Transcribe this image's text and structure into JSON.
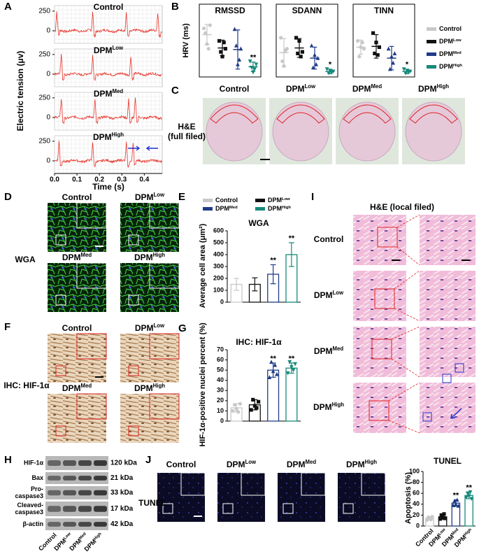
{
  "figure_letters": [
    "A",
    "B",
    "C",
    "D",
    "E",
    "F",
    "G",
    "H",
    "I",
    "J"
  ],
  "groups": [
    {
      "name": "Control"
    },
    {
      "name": "DPM",
      "sup": "Low"
    },
    {
      "name": "DPM",
      "sup": "Med"
    },
    {
      "name": "DPM",
      "sup": "High"
    }
  ],
  "group_colors": [
    "#c8c8c8",
    "#111111",
    "#1f3c88",
    "#17897a"
  ],
  "panel_A": {
    "ylabel": "Electric tension (μv)",
    "xlabel": "Time (s)",
    "ylim": [
      -160,
      320
    ],
    "yticks": [
      0,
      250
    ],
    "xlim": [
      0,
      0.48
    ],
    "xticks": [
      {
        "value": 0,
        "label": "0.0"
      },
      {
        "value": 0.1,
        "label": "0.1"
      },
      {
        "value": 0.2,
        "label": "0.2"
      },
      {
        "value": 0.3,
        "label": "0.3"
      },
      {
        "value": 0.4,
        "label": "0.4"
      }
    ]
  },
  "panel_B": {
    "ylabel": "HRV (ms)",
    "charts": [
      {
        "title": "RMSSD",
        "ylim": [
          0,
          7.5
        ],
        "means": [
          5.4,
          3.7,
          3.5,
          1.3
        ],
        "errors": [
          1.3,
          1.0,
          2.5,
          0.6
        ],
        "points": [
          [
            6.2,
            5.6,
            4.2,
            3.6,
            6.6
          ],
          [
            4.6,
            3.2,
            2.6,
            4.4,
            3.6
          ],
          [
            6.1,
            4.0,
            1.6,
            2.2,
            3.6
          ],
          [
            2.0,
            1.2,
            0.6,
            1.0,
            1.6
          ]
        ],
        "significance": [
          null,
          null,
          null,
          "**"
        ]
      },
      {
        "title": "SDANN",
        "ylim": [
          0,
          7.5
        ],
        "means": [
          3.1,
          3.7,
          2.4,
          0.7
        ],
        "errors": [
          1.8,
          1.2,
          1.4,
          0.3
        ],
        "points": [
          [
            5.0,
            2.0,
            1.4,
            3.4,
            3.6
          ],
          [
            5.0,
            3.0,
            4.6,
            2.6,
            3.2
          ],
          [
            4.0,
            1.2,
            2.8,
            1.6,
            2.4
          ],
          [
            1.0,
            0.5,
            0.8,
            0.6,
            0.7
          ]
        ],
        "significance": [
          null,
          null,
          null,
          "*"
        ]
      },
      {
        "title": "TINN",
        "ylim": [
          0,
          7.5
        ],
        "means": [
          3.8,
          3.9,
          2.4,
          0.7
        ],
        "errors": [
          0.9,
          1.5,
          1.5,
          0.3
        ],
        "points": [
          [
            4.6,
            2.6,
            3.8,
            4.4,
            3.6
          ],
          [
            5.6,
            3.0,
            4.4,
            2.8,
            3.8
          ],
          [
            3.6,
            1.0,
            2.6,
            1.8,
            3.0
          ],
          [
            1.0,
            0.5,
            0.8,
            0.6,
            0.7
          ]
        ],
        "significance": [
          null,
          null,
          null,
          "*"
        ]
      }
    ]
  },
  "panel_C": {
    "label_lines": [
      "H&E",
      "(full filed)"
    ]
  },
  "panel_D": {
    "label": "WGA"
  },
  "panel_E": {
    "title": "WGA",
    "ylabel": "Average cell area (μm²)",
    "ylim": [
      0,
      600
    ],
    "yticks": [
      0,
      100,
      200,
      300,
      400,
      500,
      600
    ],
    "means": [
      150,
      150,
      235,
      400
    ],
    "errors": [
      50,
      55,
      80,
      100
    ],
    "significance": [
      null,
      null,
      "**",
      "**"
    ]
  },
  "panel_F": {
    "label": "IHC: HIF-1α"
  },
  "panel_G": {
    "title": "IHC: HIF-1α",
    "ylabel": "HIF-1α-positive nuclei percent (%)",
    "ylim": [
      0,
      70
    ],
    "yticks": [
      0,
      10,
      20,
      30,
      40,
      50,
      60,
      70
    ],
    "means": [
      13,
      16,
      50,
      52
    ],
    "errors": [
      4,
      5,
      7,
      5
    ],
    "points": [
      [
        10,
        16,
        12,
        9,
        17
      ],
      [
        11,
        21,
        15,
        13,
        19
      ],
      [
        43,
        58,
        49,
        55,
        46
      ],
      [
        47,
        58,
        53,
        50,
        56
      ]
    ],
    "significance": [
      null,
      null,
      "**",
      "**"
    ]
  },
  "panel_H": {
    "bands": [
      {
        "lines": [
          "HIF-1α"
        ],
        "kda": "120 kDa"
      },
      {
        "lines": [
          "Bax"
        ],
        "kda": "21 kDa"
      },
      {
        "lines": [
          "Pro-",
          "caspase3"
        ],
        "kda": "33 kDa"
      },
      {
        "lines": [
          "Cleaved-",
          "caspase3"
        ],
        "kda": "17 kDa"
      },
      {
        "lines": [
          "β-actin"
        ],
        "kda": "42 kDa"
      }
    ]
  },
  "panel_I": {
    "title": "H&E (local filed)"
  },
  "panel_J": {
    "label": "TUNEL",
    "title": "TUNEL",
    "ylabel": "Apoptosis (%)",
    "ylim": [
      0,
      100
    ],
    "yticks": [
      0,
      20,
      40,
      60,
      80,
      100
    ],
    "means": [
      14,
      17,
      42,
      56
    ],
    "errors": [
      3,
      5,
      6,
      6
    ],
    "points": [
      [
        11,
        16,
        14,
        12,
        17
      ],
      [
        13,
        20,
        16,
        22,
        14
      ],
      [
        38,
        46,
        40,
        48,
        37
      ],
      [
        52,
        60,
        55,
        62,
        50
      ]
    ],
    "significance": [
      null,
      null,
      "**",
      "**"
    ]
  }
}
